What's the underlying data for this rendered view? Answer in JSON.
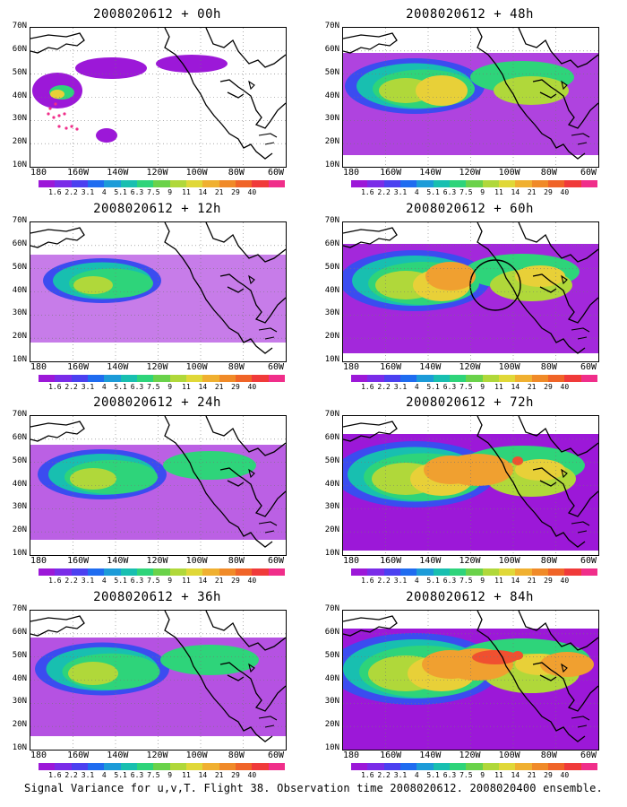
{
  "panels": [
    {
      "title": "2008020612 + 00h",
      "level": 0
    },
    {
      "title": "2008020612 + 48h",
      "level": 3
    },
    {
      "title": "2008020612 + 12h",
      "level": 1
    },
    {
      "title": "2008020612 + 60h",
      "level": 4
    },
    {
      "title": "2008020612 + 24h",
      "level": 2
    },
    {
      "title": "2008020612 + 72h",
      "level": 5
    },
    {
      "title": "2008020612 + 36h",
      "level": 2.5
    },
    {
      "title": "2008020612 + 84h",
      "level": 6
    }
  ],
  "y_labels": [
    "70N",
    "60N",
    "50N",
    "40N",
    "30N",
    "20N",
    "10N"
  ],
  "x_labels": [
    "180",
    "160W",
    "140W",
    "120W",
    "100W",
    "80W",
    "60W"
  ],
  "colorbar": {
    "colors": [
      "#9c18d8",
      "#7a2ce8",
      "#4b40f0",
      "#1f6cf0",
      "#1c9bd8",
      "#18bfb0",
      "#2ed47a",
      "#6ad24a",
      "#b0d83a",
      "#e0d838",
      "#f0b030",
      "#f08a28",
      "#f06428",
      "#f03a3a",
      "#f02e8a"
    ],
    "labels": [
      "1.6",
      "2.2",
      "3.1",
      "4",
      "5.1",
      "6.3",
      "7.5",
      "9",
      "11",
      "14",
      "21",
      "29",
      "40"
    ]
  },
  "caption": "Signal Variance for u,v,T. Flight 38. Observation time 2008020612. 2008020400 ensemble.",
  "colors": {
    "purple": "#9c18d8",
    "blue": "#3b4cf0",
    "cyan": "#18bfb0",
    "green": "#2ed47a",
    "lime": "#b0d83a",
    "yellow": "#e8d038",
    "orange": "#f0a030",
    "red": "#f05030",
    "marker": "#f02e8a"
  }
}
